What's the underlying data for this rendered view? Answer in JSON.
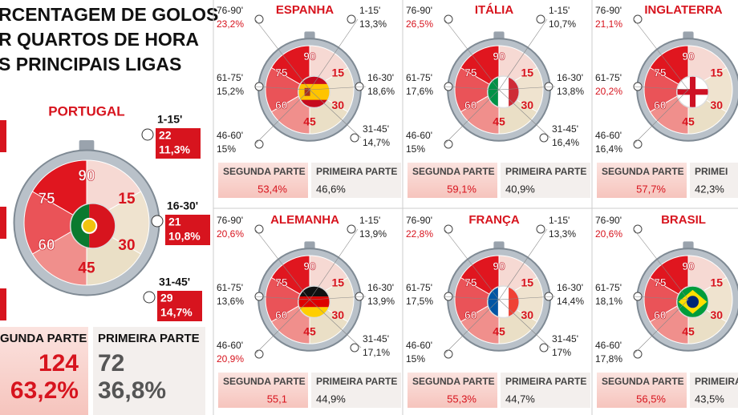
{
  "title_lines": [
    "RCENTAGEM DE GOLOS",
    "R QUARTOS DE HORA",
    "S PRINCIPAIS LIGAS"
  ],
  "clock_numbers": [
    "90",
    "15",
    "30",
    "45",
    "60",
    "75"
  ],
  "portugal": {
    "name": "PORTUGAL",
    "segments": [
      {
        "period": "1-15'",
        "goals": "22",
        "percent": "11,3%"
      },
      {
        "period": "16-30'",
        "goals": "21",
        "percent": "10,8%"
      },
      {
        "period": "31-45'",
        "goals": "29",
        "percent": "14,7%"
      }
    ],
    "second_half": {
      "label": "GUNDA PARTE",
      "goals": "124",
      "percent": "63,2%"
    },
    "first_half": {
      "label": "PRIMEIRA PARTE",
      "goals": "72",
      "percent": "36,8%"
    }
  },
  "leagues": [
    {
      "name": "ESPANHA",
      "segments": [
        {
          "period": "76-90'",
          "percent": "23,2%",
          "color": "#d7141e"
        },
        {
          "period": "61-75'",
          "percent": "15,2%",
          "color": "#222222"
        },
        {
          "period": "46-60'",
          "percent": "15%",
          "color": "#222222"
        },
        {
          "period": "1-15'",
          "percent": "13,3%",
          "color": "#222222"
        },
        {
          "period": "16-30'",
          "percent": "18,6%",
          "color": "#222222"
        },
        {
          "period": "31-45'",
          "percent": "14,7%",
          "color": "#222222"
        }
      ],
      "second_half": {
        "label": "SEGUNDA PARTE",
        "percent": "53,4%"
      },
      "first_half": {
        "label": "PRIMEIRA PARTE",
        "percent": "46,6%"
      }
    },
    {
      "name": "ITÁLIA",
      "segments": [
        {
          "period": "76-90'",
          "percent": "26,5%",
          "color": "#d7141e"
        },
        {
          "period": "61-75'",
          "percent": "17,6%",
          "color": "#222222"
        },
        {
          "period": "46-60'",
          "percent": "15%",
          "color": "#222222"
        },
        {
          "period": "1-15'",
          "percent": "10,7%",
          "color": "#222222"
        },
        {
          "period": "16-30'",
          "percent": "13,8%",
          "color": "#222222"
        },
        {
          "period": "31-45'",
          "percent": "16,4%",
          "color": "#222222"
        }
      ],
      "second_half": {
        "label": "SEGUNDA PARTE",
        "percent": "59,1%"
      },
      "first_half": {
        "label": "PRIMEIRA PARTE",
        "percent": "40,9%"
      }
    },
    {
      "name": "INGLATERRA",
      "segments": [
        {
          "period": "76-90'",
          "percent": "21,1%",
          "color": "#d7141e"
        },
        {
          "period": "61-75'",
          "percent": "20,2%",
          "color": "#d7141e"
        },
        {
          "period": "46-60'",
          "percent": "16,4%",
          "color": "#222222"
        }
      ],
      "second_half": {
        "label": "SEGUNDA PARTE",
        "percent": "57,7%"
      },
      "first_half": {
        "label": "PRIMEI",
        "percent": "42,3%"
      }
    },
    {
      "name": "ALEMANHA",
      "segments": [
        {
          "period": "76-90'",
          "percent": "20,6%",
          "color": "#d7141e"
        },
        {
          "period": "61-75'",
          "percent": "13,6%",
          "color": "#222222"
        },
        {
          "period": "46-60'",
          "percent": "20,9%",
          "color": "#d7141e"
        },
        {
          "period": "1-15'",
          "percent": "13,9%",
          "color": "#222222"
        },
        {
          "period": "16-30'",
          "percent": "13,9%",
          "color": "#222222"
        },
        {
          "period": "31-45'",
          "percent": "17,1%",
          "color": "#222222"
        }
      ],
      "second_half": {
        "label": "SEGUNDA PARTE",
        "percent": "55,1"
      },
      "first_half": {
        "label": "PRIMEIRA PARTE",
        "percent": "44,9%"
      }
    },
    {
      "name": "FRANÇA",
      "segments": [
        {
          "period": "76-90'",
          "percent": "22,8%",
          "color": "#d7141e"
        },
        {
          "period": "61-75'",
          "percent": "17,5%",
          "color": "#222222"
        },
        {
          "period": "46-60'",
          "percent": "15%",
          "color": "#222222"
        },
        {
          "period": "1-15'",
          "percent": "13,3%",
          "color": "#222222"
        },
        {
          "period": "16-30'",
          "percent": "14,4%",
          "color": "#222222"
        },
        {
          "period": "31-45'",
          "percent": "17%",
          "color": "#222222"
        }
      ],
      "second_half": {
        "label": "SEGUNDA PARTE",
        "percent": "55,3%"
      },
      "first_half": {
        "label": "PRIMEIRA PARTE",
        "percent": "44,7%"
      }
    },
    {
      "name": "BRASIL",
      "segments": [
        {
          "period": "76-90'",
          "percent": "20,6%",
          "color": "#d7141e"
        },
        {
          "period": "61-75'",
          "percent": "18,1%",
          "color": "#222222"
        },
        {
          "period": "46-60'",
          "percent": "17,8%",
          "color": "#222222"
        }
      ],
      "second_half": {
        "label": "SEGUNDA PARTE",
        "percent": "56,5%"
      },
      "first_half": {
        "label": "PRIMEIRA PARTE",
        "percent": "43,5%"
      }
    }
  ]
}
